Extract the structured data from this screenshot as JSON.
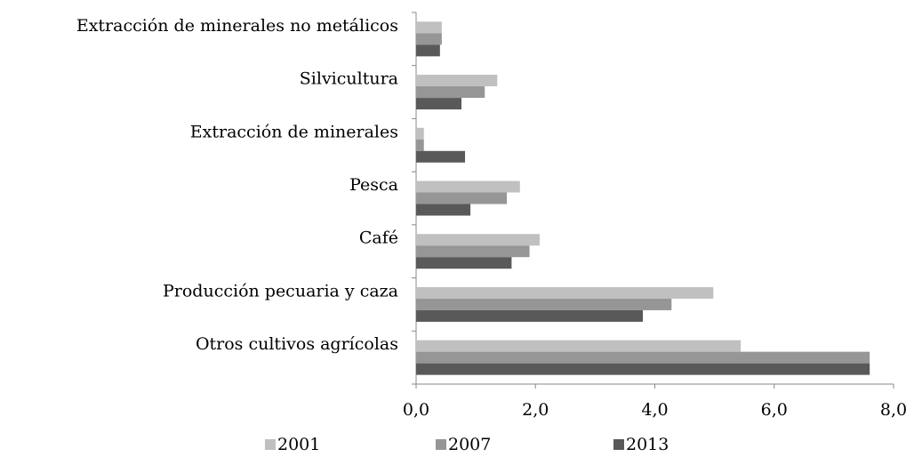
{
  "chart_data": {
    "type": "hbar",
    "categories": [
      "Extracción de minerales no metálicos",
      "Silvicultura",
      "Extracción de minerales",
      "Pesca",
      "Café",
      "Producción pecuaria y caza",
      "Otros cultivos agrícolas"
    ],
    "series": [
      {
        "name": "2001",
        "color": "#c0c0c0",
        "values": [
          0.43,
          1.36,
          0.13,
          1.74,
          2.07,
          4.98,
          5.44
        ]
      },
      {
        "name": "2007",
        "color": "#969696",
        "values": [
          0.43,
          1.15,
          0.13,
          1.52,
          1.9,
          4.28,
          7.6
        ]
      },
      {
        "name": "2013",
        "color": "#595959",
        "values": [
          0.4,
          0.76,
          0.82,
          0.91,
          1.6,
          3.8,
          7.6
        ]
      }
    ],
    "xlim": [
      0,
      8
    ],
    "xticks": [
      {
        "value": 0,
        "label": "0,0"
      },
      {
        "value": 2,
        "label": "2,0"
      },
      {
        "value": 4,
        "label": "4,0"
      },
      {
        "value": 6,
        "label": "6,0"
      },
      {
        "value": 8,
        "label": "8,0"
      }
    ],
    "legend": "bottom"
  }
}
